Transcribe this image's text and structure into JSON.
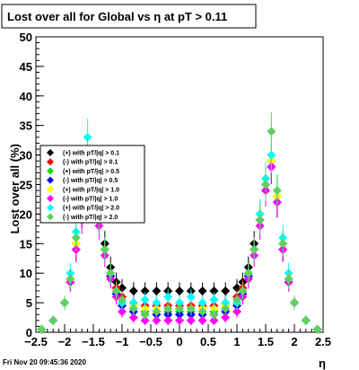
{
  "title": "Lost over all for Global vs   η at pT > 0.11",
  "timestamp": "Fri Nov 20 09:45:36 2020",
  "chart_data": {
    "type": "scatter",
    "xlabel": "η",
    "ylabel": "Lost over all (%)",
    "xlim": [
      -2.5,
      2.5
    ],
    "ylim": [
      0,
      50
    ],
    "xticks": [
      -2.5,
      -2,
      -1.5,
      -1,
      -0.5,
      0,
      0.5,
      1,
      1.5,
      2,
      2.5
    ],
    "xtick_labels": [
      "−2.5",
      "−2",
      "−1.5",
      "−1",
      "−0.5",
      "0",
      "0.5",
      "1",
      "1.5",
      "2",
      "2.5"
    ],
    "yticks": [
      0,
      5,
      10,
      15,
      20,
      25,
      30,
      35,
      40,
      45,
      50
    ],
    "ytick_labels": [
      "0",
      "5",
      "10",
      "15",
      "20",
      "25",
      "30",
      "35",
      "40",
      "45",
      "50"
    ],
    "legend_position": "left",
    "x": [
      -2.4,
      -2.2,
      -2.0,
      -1.9,
      -1.8,
      -1.7,
      -1.6,
      -1.5,
      -1.4,
      -1.3,
      -1.2,
      -1.1,
      -1.0,
      -0.8,
      -0.6,
      -0.4,
      -0.2,
      0.0,
      0.2,
      0.4,
      0.6,
      0.8,
      1.0,
      1.1,
      1.2,
      1.3,
      1.4,
      1.5,
      1.6,
      1.7,
      1.8,
      1.9,
      2.0,
      2.2,
      2.4
    ],
    "series": [
      {
        "name": "(+) with pT/|q| > 0.1",
        "color": "#000000",
        "values": [
          0.5,
          2,
          5,
          9,
          15,
          22,
          25,
          26,
          20,
          15,
          11,
          8.5,
          7.5,
          7,
          7,
          7,
          7,
          7,
          7,
          7,
          7,
          7,
          7.5,
          8.5,
          11,
          15,
          20,
          26,
          29,
          23,
          15,
          9,
          5,
          2,
          0.5
        ]
      },
      {
        "name": "(-) with pT/|q| > 0.1",
        "color": "#ff0000",
        "values": [
          0.5,
          2,
          5,
          8.5,
          14,
          20,
          23,
          24,
          19,
          14,
          10,
          7.5,
          6,
          5,
          4.5,
          4.5,
          4.5,
          4.5,
          4.5,
          4.5,
          4.5,
          5,
          6,
          7.5,
          10,
          14,
          19,
          24,
          28,
          22,
          14,
          8.5,
          5,
          2,
          0.5
        ]
      },
      {
        "name": "(+) with pT/|q| > 0.5",
        "color": "#00e000",
        "values": [
          0.5,
          2,
          5,
          9,
          15,
          21,
          24,
          26,
          20,
          14,
          10,
          7,
          5,
          4,
          3.5,
          3.5,
          3.5,
          3.5,
          3.5,
          3.5,
          3.5,
          4,
          5,
          7,
          10,
          14,
          20,
          26,
          29,
          23,
          15,
          9,
          5,
          2,
          0.5
        ]
      },
      {
        "name": "(-) with pT/|q| > 0.5",
        "color": "#0000ff",
        "values": [
          0.5,
          2,
          5,
          8.5,
          14,
          20,
          23,
          25,
          19,
          14,
          9.5,
          6.5,
          4.5,
          3.5,
          3,
          3,
          3,
          3,
          3,
          3,
          3,
          3.5,
          4.5,
          6.5,
          9.5,
          14,
          19,
          25,
          28,
          22,
          14,
          8.5,
          5,
          2,
          0.5
        ]
      },
      {
        "name": "(+) with pT/|q| > 1.0",
        "color": "#ffff00",
        "values": [
          0.5,
          2,
          5,
          9,
          15,
          21,
          24,
          26,
          20,
          14,
          10,
          7,
          5,
          4.5,
          4,
          4,
          4,
          4,
          4,
          4,
          4,
          4.5,
          5,
          7,
          10,
          14,
          20,
          26,
          29,
          23,
          15,
          9,
          5,
          2,
          0.5
        ]
      },
      {
        "name": "(-) with pT/|q| > 1.0",
        "color": "#ff00ff",
        "values": [
          0.5,
          2,
          5,
          8.5,
          14,
          19,
          22,
          24,
          18,
          13,
          9,
          6,
          3.5,
          2.5,
          2,
          2,
          2,
          2,
          2,
          2,
          2,
          2.5,
          3.5,
          6,
          9,
          13,
          18,
          24,
          28,
          22,
          14,
          8.5,
          5,
          2,
          0.5
        ]
      },
      {
        "name": "(+) with pT/|q| > 2.0",
        "color": "#00ffff",
        "values": [
          0.5,
          2,
          5,
          10,
          17,
          24,
          33,
          26,
          20,
          14,
          10,
          7,
          5,
          5,
          5.5,
          5,
          6,
          5,
          6,
          5,
          5.5,
          5,
          5,
          7,
          10,
          14,
          20,
          26,
          30,
          24,
          16,
          10,
          5,
          2,
          0.5
        ]
      },
      {
        "name": "(-) with pT/|q| > 2.0",
        "color": "#60d060",
        "values": [
          0.5,
          2,
          5,
          9,
          16,
          23,
          30,
          25,
          19,
          14,
          10,
          7,
          5.5,
          4,
          3,
          3.5,
          4,
          4,
          4,
          3.5,
          3,
          4,
          5.5,
          7,
          10,
          14,
          19,
          25,
          34,
          24,
          15,
          9,
          5,
          2,
          0.5
        ]
      }
    ]
  }
}
